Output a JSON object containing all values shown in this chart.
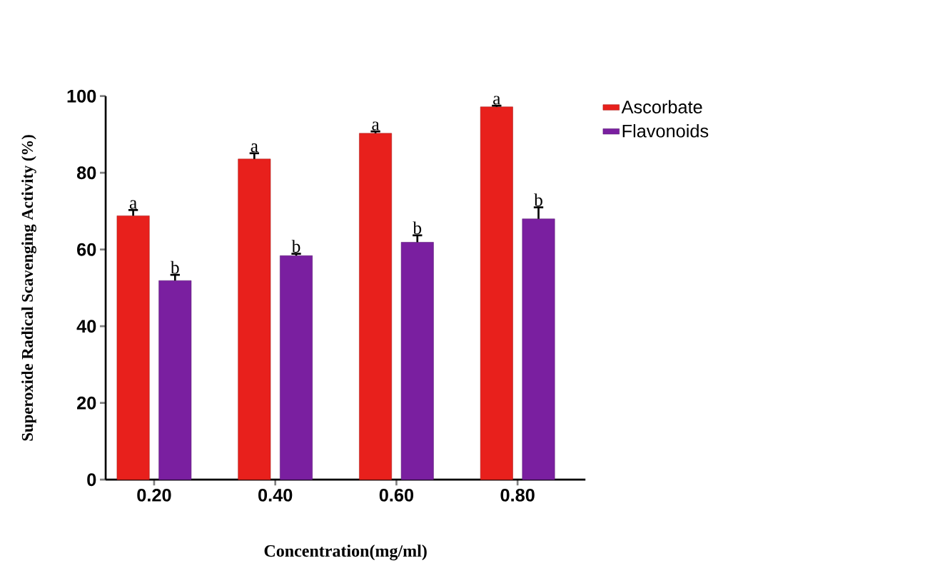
{
  "chart_data": {
    "type": "bar",
    "xlabel": "Concentration(mg/ml)",
    "ylabel": "Superoxide  Radical Scavenging Activity (%)",
    "categories": [
      "0.20",
      "0.40",
      "0.60",
      "0.80"
    ],
    "series": [
      {
        "name": "Ascorbate",
        "color": "#e8201c",
        "values": [
          68.8,
          83.6,
          90.3,
          97.2
        ],
        "errors": [
          1.5,
          1.5,
          0.5,
          0.3
        ]
      },
      {
        "name": "Flavonoids",
        "color": "#7a1fa0",
        "values": [
          51.9,
          58.4,
          61.9,
          68.0
        ],
        "errors": [
          1.5,
          0.5,
          1.8,
          3.0
        ]
      }
    ],
    "ylim": [
      0,
      100
    ],
    "yticks": [
      0,
      20,
      40,
      60,
      80,
      100
    ],
    "legend": "right",
    "grid": false,
    "annotations": [
      "a",
      "b",
      "a",
      "b",
      "a",
      "b",
      "a",
      "b"
    ]
  }
}
